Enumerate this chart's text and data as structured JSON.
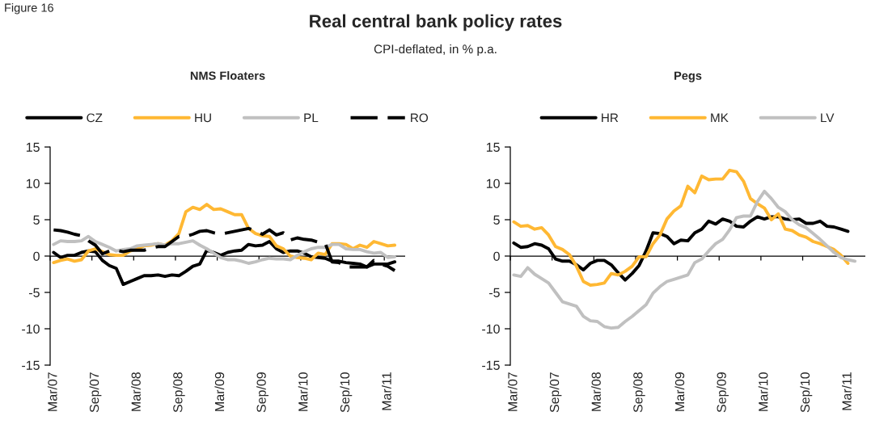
{
  "chart_data": [
    {
      "type": "other",
      "title": "Real central bank policy rates",
      "subtitle": "CPI-deflated, in % p.a.",
      "annotations": [
        "Figure 16"
      ]
    },
    {
      "type": "line",
      "title": "NMS Floaters",
      "categories": [
        "Mar/07",
        null,
        null,
        null,
        null,
        null,
        "Sep/07",
        null,
        null,
        null,
        null,
        null,
        "Mar/08",
        null,
        null,
        null,
        null,
        null,
        "Sep/08",
        null,
        null,
        null,
        null,
        null,
        "Mar/09",
        null,
        null,
        null,
        null,
        null,
        "Sep/09",
        null,
        null,
        null,
        null,
        null,
        "Mar/10",
        null,
        null,
        null,
        null,
        null,
        "Sep/10",
        null,
        null,
        null,
        null,
        null,
        "Mar/11",
        null,
        null
      ],
      "series": [
        {
          "name": "CZ",
          "color": "#000000",
          "values": [
            0.5,
            -0.2,
            0.1,
            0.1,
            0.5,
            0.7,
            0.6,
            -0.6,
            -1.3,
            -1.7,
            -3.9,
            -3.5,
            -3.1,
            -2.7,
            -2.7,
            -2.6,
            -2.8,
            -2.6,
            -2.7,
            -2.1,
            -1.4,
            -1.1,
            0.8,
            0.5,
            0.1,
            0.5,
            0.7,
            0.8,
            1.6,
            1.4,
            1.5,
            2.0,
            1.0,
            0.5,
            0.7,
            0.7,
            0.4,
            -0.1,
            -0.2,
            -0.3,
            -0.7,
            -0.7,
            -0.9,
            -1.0,
            -1.1,
            -1.5,
            -1.1,
            -1.1,
            -1.1,
            -0.8,
            null
          ]
        },
        {
          "name": "HU",
          "color": "#ffb833",
          "values": [
            -0.9,
            -0.6,
            -0.4,
            -0.7,
            -0.5,
            0.7,
            1.0,
            0.6,
            0.2,
            0.1,
            0.1,
            0.7,
            1.0,
            1.4,
            1.5,
            1.7,
            1.5,
            2.1,
            3.1,
            6.1,
            6.7,
            6.4,
            7.1,
            6.4,
            6.5,
            6.1,
            5.7,
            5.7,
            3.8,
            3.1,
            2.8,
            2.7,
            1.4,
            1.0,
            0.0,
            -0.2,
            -0.3,
            -0.5,
            0.4,
            0.2,
            1.7,
            1.7,
            1.6,
            1.0,
            1.5,
            1.2,
            2.0,
            1.7,
            1.4,
            1.5,
            null
          ]
        },
        {
          "name": "PL",
          "color": "#c0c0c0",
          "values": [
            1.6,
            2.1,
            2.0,
            2.0,
            2.1,
            2.7,
            2.0,
            1.6,
            1.2,
            0.7,
            0.9,
            1.0,
            1.4,
            1.5,
            1.6,
            1.7,
            1.5,
            1.7,
            1.7,
            1.9,
            2.1,
            1.5,
            1.0,
            0.4,
            -0.2,
            -0.5,
            -0.5,
            -0.7,
            -1.0,
            -0.8,
            -0.5,
            -0.3,
            -0.4,
            -0.4,
            -0.5,
            0.1,
            0.6,
            1.0,
            1.2,
            1.2,
            1.6,
            1.6,
            1.0,
            0.9,
            0.9,
            0.6,
            0.4,
            0.5,
            -0.2,
            -0.1,
            null
          ]
        },
        {
          "name": "RO",
          "color": "#000000",
          "line_style": "dashed",
          "values": [
            3.6,
            3.5,
            3.3,
            3.0,
            2.8,
            2.1,
            1.5,
            0.3,
            0.7,
            0.8,
            0.6,
            0.8,
            0.8,
            0.8,
            1.1,
            1.3,
            1.3,
            2.0,
            2.7,
            2.7,
            3.0,
            3.4,
            3.5,
            3.2,
            3.0,
            3.2,
            3.4,
            3.6,
            3.8,
            3.5,
            3.0,
            3.6,
            2.9,
            3.2,
            2.2,
            2.5,
            2.3,
            2.2,
            1.9,
            1.8,
            -0.8,
            -0.9,
            -1.5,
            -1.5,
            -1.5,
            -1.5,
            -0.6,
            -1.1,
            -1.4,
            -2.0,
            null
          ]
        }
      ],
      "ylim": [
        -15,
        15
      ],
      "yticks": [
        -15,
        -10,
        -5,
        0,
        5,
        10,
        15
      ],
      "ref_lines": [
        {
          "axis": "y",
          "value": 0,
          "color": "#000000"
        }
      ],
      "legend": "top",
      "grid": false,
      "line_style": "solid"
    },
    {
      "type": "line",
      "title": "Pegs",
      "categories": [
        "Mar/07",
        null,
        null,
        null,
        null,
        null,
        "Sep/07",
        null,
        null,
        null,
        null,
        null,
        "Mar/08",
        null,
        null,
        null,
        null,
        null,
        "Sep/08",
        null,
        null,
        null,
        null,
        null,
        "Mar/09",
        null,
        null,
        null,
        null,
        null,
        "Sep/09",
        null,
        null,
        null,
        null,
        null,
        "Mar/10",
        null,
        null,
        null,
        null,
        null,
        "Sep/10",
        null,
        null,
        null,
        null,
        null,
        "Mar/11",
        null,
        null
      ],
      "series": [
        {
          "name": "HR",
          "color": "#000000",
          "values": [
            1.8,
            1.2,
            1.3,
            1.7,
            1.5,
            1.0,
            -0.4,
            -0.7,
            -0.7,
            -1.2,
            -1.9,
            -1.0,
            -0.6,
            -0.6,
            -1.2,
            -2.3,
            -3.3,
            -2.4,
            -1.3,
            0.7,
            3.2,
            3.1,
            2.7,
            1.7,
            2.2,
            2.1,
            3.2,
            3.7,
            4.8,
            4.4,
            5.1,
            4.8,
            4.1,
            4.0,
            4.8,
            5.4,
            5.1,
            5.4,
            5.4,
            5.1,
            5.0,
            5.1,
            4.5,
            4.5,
            4.8,
            4.1,
            4.0,
            3.7,
            3.4,
            null,
            null
          ]
        },
        {
          "name": "MK",
          "color": "#ffb833",
          "values": [
            4.7,
            4.1,
            4.2,
            3.7,
            3.9,
            2.9,
            1.3,
            0.9,
            0.2,
            -1.4,
            -3.5,
            -4.0,
            -3.9,
            -3.7,
            -2.4,
            -2.6,
            -2.1,
            -1.4,
            -0.1,
            -0.1,
            1.7,
            2.9,
            5.1,
            6.2,
            6.9,
            9.6,
            8.7,
            11.0,
            10.5,
            10.6,
            10.6,
            11.8,
            11.6,
            10.3,
            7.9,
            7.2,
            6.6,
            5.0,
            5.8,
            3.7,
            3.5,
            2.9,
            2.6,
            2.0,
            1.7,
            1.3,
            0.9,
            0.1,
            -1.0,
            null,
            null
          ]
        },
        {
          "name": "LV",
          "color": "#c0c0c0",
          "values": [
            -2.6,
            -2.8,
            -1.6,
            -2.5,
            -3.1,
            -3.7,
            -5.0,
            -6.3,
            -6.6,
            -6.9,
            -8.3,
            -8.9,
            -9.0,
            -9.7,
            -9.9,
            -9.8,
            -9.0,
            -8.3,
            -7.5,
            -6.7,
            -5.1,
            -4.2,
            -3.5,
            -3.2,
            -2.9,
            -2.6,
            -0.9,
            -0.4,
            0.7,
            1.7,
            2.3,
            3.6,
            5.3,
            5.5,
            5.5,
            7.5,
            8.9,
            7.9,
            6.7,
            6.1,
            5.0,
            4.3,
            3.9,
            3.1,
            2.3,
            1.4,
            0.5,
            -0.2,
            -0.5,
            -0.7,
            null
          ]
        }
      ],
      "ylim": [
        -15,
        15
      ],
      "yticks": [
        -15,
        -10,
        -5,
        0,
        5,
        10,
        15
      ],
      "ref_lines": [
        {
          "axis": "y",
          "value": 0,
          "color": "#000000"
        }
      ],
      "legend": "top",
      "grid": false,
      "line_style": "solid"
    }
  ]
}
